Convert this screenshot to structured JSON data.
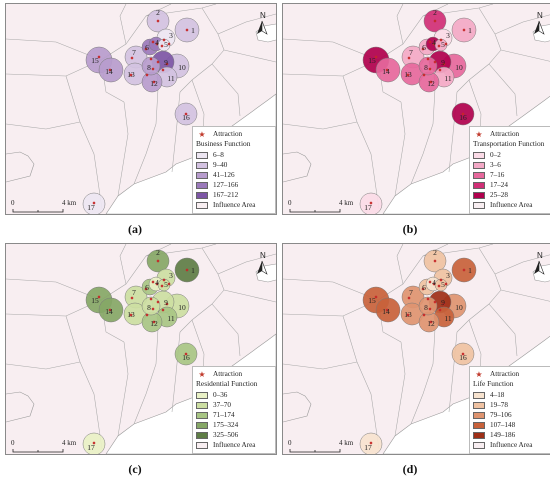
{
  "figure": {
    "north_label": "N",
    "scale_zero": "0",
    "scale_end": "4 km",
    "attraction_label": "Attraction",
    "influence_label": "Influence Area",
    "site_ids": [
      "1",
      "2",
      "3",
      "4",
      "5",
      "6",
      "7",
      "8",
      "9",
      "10",
      "11",
      "12",
      "13",
      "14",
      "15",
      "16",
      "17"
    ]
  },
  "panels": [
    {
      "id": "a",
      "label": "(a)",
      "legend_title": "Business Function",
      "classes": [
        {
          "range": "6–8",
          "color": "#ede6f2"
        },
        {
          "range": "9–40",
          "color": "#d3c2e1"
        },
        {
          "range": "41–126",
          "color": "#b79ccd"
        },
        {
          "range": "127–166",
          "color": "#9b7abb"
        },
        {
          "range": "167–212",
          "color": "#7d56a5"
        }
      ],
      "site_class": [
        1,
        1,
        0,
        3,
        0,
        3,
        1,
        2,
        4,
        1,
        1,
        2,
        1,
        2,
        2,
        1,
        0
      ]
    },
    {
      "id": "b",
      "label": "(b)",
      "legend_title": "Transportation Function",
      "classes": [
        {
          "range": "0–2",
          "color": "#fbdbe7"
        },
        {
          "range": "3–6",
          "color": "#f3a9c6"
        },
        {
          "range": "7–16",
          "color": "#e6689c"
        },
        {
          "range": "17–24",
          "color": "#d02f76"
        },
        {
          "range": "25–28",
          "color": "#b0004d"
        }
      ],
      "site_class": [
        1,
        3,
        0,
        4,
        1,
        1,
        1,
        2,
        4,
        2,
        1,
        2,
        2,
        2,
        4,
        4,
        0
      ]
    },
    {
      "id": "c",
      "label": "(c)",
      "legend_title": "Residential Function",
      "classes": [
        {
          "range": "0–36",
          "color": "#e9f1c6"
        },
        {
          "range": "37–70",
          "color": "#ccdea2"
        },
        {
          "range": "71–174",
          "color": "#a8c584"
        },
        {
          "range": "175–324",
          "color": "#86a766"
        },
        {
          "range": "325–506",
          "color": "#5e7d45"
        }
      ],
      "site_class": [
        4,
        3,
        1,
        0,
        1,
        2,
        1,
        1,
        1,
        1,
        2,
        2,
        1,
        3,
        3,
        2,
        0
      ]
    },
    {
      "id": "d",
      "label": "(d)",
      "legend_title": "Life Function",
      "classes": [
        {
          "range": "4–18",
          "color": "#f7e3cf"
        },
        {
          "range": "19–78",
          "color": "#efc2a2"
        },
        {
          "range": "79–106",
          "color": "#de9470"
        },
        {
          "range": "107–148",
          "color": "#c8623b"
        },
        {
          "range": "149–186",
          "color": "#9e2f17"
        }
      ],
      "site_class": [
        3,
        1,
        1,
        0,
        1,
        1,
        2,
        2,
        4,
        2,
        3,
        2,
        2,
        3,
        3,
        1,
        0
      ]
    }
  ]
}
